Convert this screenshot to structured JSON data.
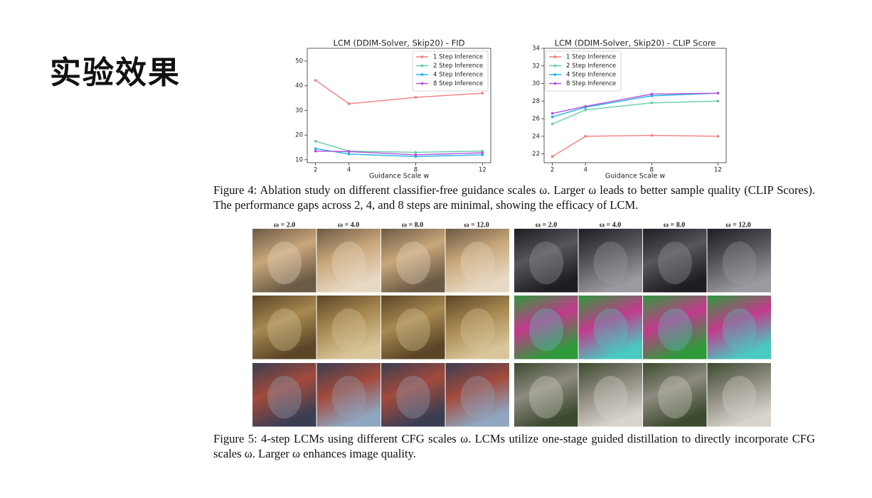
{
  "slide_title": "实验效果",
  "chart_data": [
    {
      "type": "line",
      "title": "LCM (DDIM-Solver, Skip20) - FID",
      "x_label": "Guidance Scale w",
      "x": [
        2,
        4,
        8,
        12
      ],
      "xlim": [
        1.5,
        12.5
      ],
      "xticks": [
        2,
        4,
        8,
        12
      ],
      "ylim": [
        8.8,
        55.2
      ],
      "yticks": [
        10,
        20,
        30,
        40,
        50
      ],
      "legend": "upper right",
      "series": [
        {
          "name": "1 Step Inference",
          "color": "#f08080",
          "values": [
            42.2,
            32.7,
            35.3,
            37.0
          ]
        },
        {
          "name": "2 Step Inference",
          "color": "#66cdaa",
          "values": [
            17.5,
            13.5,
            13.0,
            13.5
          ]
        },
        {
          "name": "4 Step Inference",
          "color": "#1fb5e8",
          "values": [
            14.5,
            12.3,
            11.3,
            12.0
          ]
        },
        {
          "name": "8 Step Inference",
          "color": "#b453d6",
          "values": [
            13.5,
            13.3,
            12.0,
            12.8
          ]
        }
      ]
    },
    {
      "type": "line",
      "title": "LCM (DDIM-Solver, Skip20) - CLIP Score",
      "x_label": "Guidance Scale w",
      "x": [
        2,
        4,
        8,
        12
      ],
      "xlim": [
        1.5,
        12.5
      ],
      "xticks": [
        2,
        4,
        8,
        12
      ],
      "ylim": [
        21,
        34
      ],
      "yticks": [
        22,
        24,
        26,
        28,
        30,
        32,
        34
      ],
      "legend": "upper left",
      "series": [
        {
          "name": "1 Step Inference",
          "color": "#f08080",
          "values": [
            21.7,
            24.0,
            24.1,
            24.0
          ]
        },
        {
          "name": "2 Step Inference",
          "color": "#66cdaa",
          "values": [
            25.4,
            27.0,
            27.8,
            28.0
          ]
        },
        {
          "name": "4 Step Inference",
          "color": "#1fb5e8",
          "values": [
            26.2,
            27.3,
            28.6,
            28.9
          ]
        },
        {
          "name": "8 Step Inference",
          "color": "#b453d6",
          "values": [
            26.6,
            27.4,
            28.8,
            28.9
          ]
        }
      ]
    }
  ],
  "figure4_caption": "Figure 4: Ablation study on different classifier-free guidance scales ω. Larger ω leads to better sample quality (CLIP Scores). The performance gaps across 2, 4, and 8 steps are minimal, showing the efficacy of LCM.",
  "figure5": {
    "column_labels": [
      "ω = 2.0",
      "ω = 4.0",
      "ω = 8.0",
      "ω = 12.0",
      "ω = 2.0",
      "ω = 4.0",
      "ω = 8.0",
      "ω = 12.0"
    ],
    "caption": "Figure 5: 4-step LCMs using different CFG scales ω. LCMs utilize one-stage guided distillation to directly incorporate CFG scales ω. Larger ω enhances image quality."
  }
}
